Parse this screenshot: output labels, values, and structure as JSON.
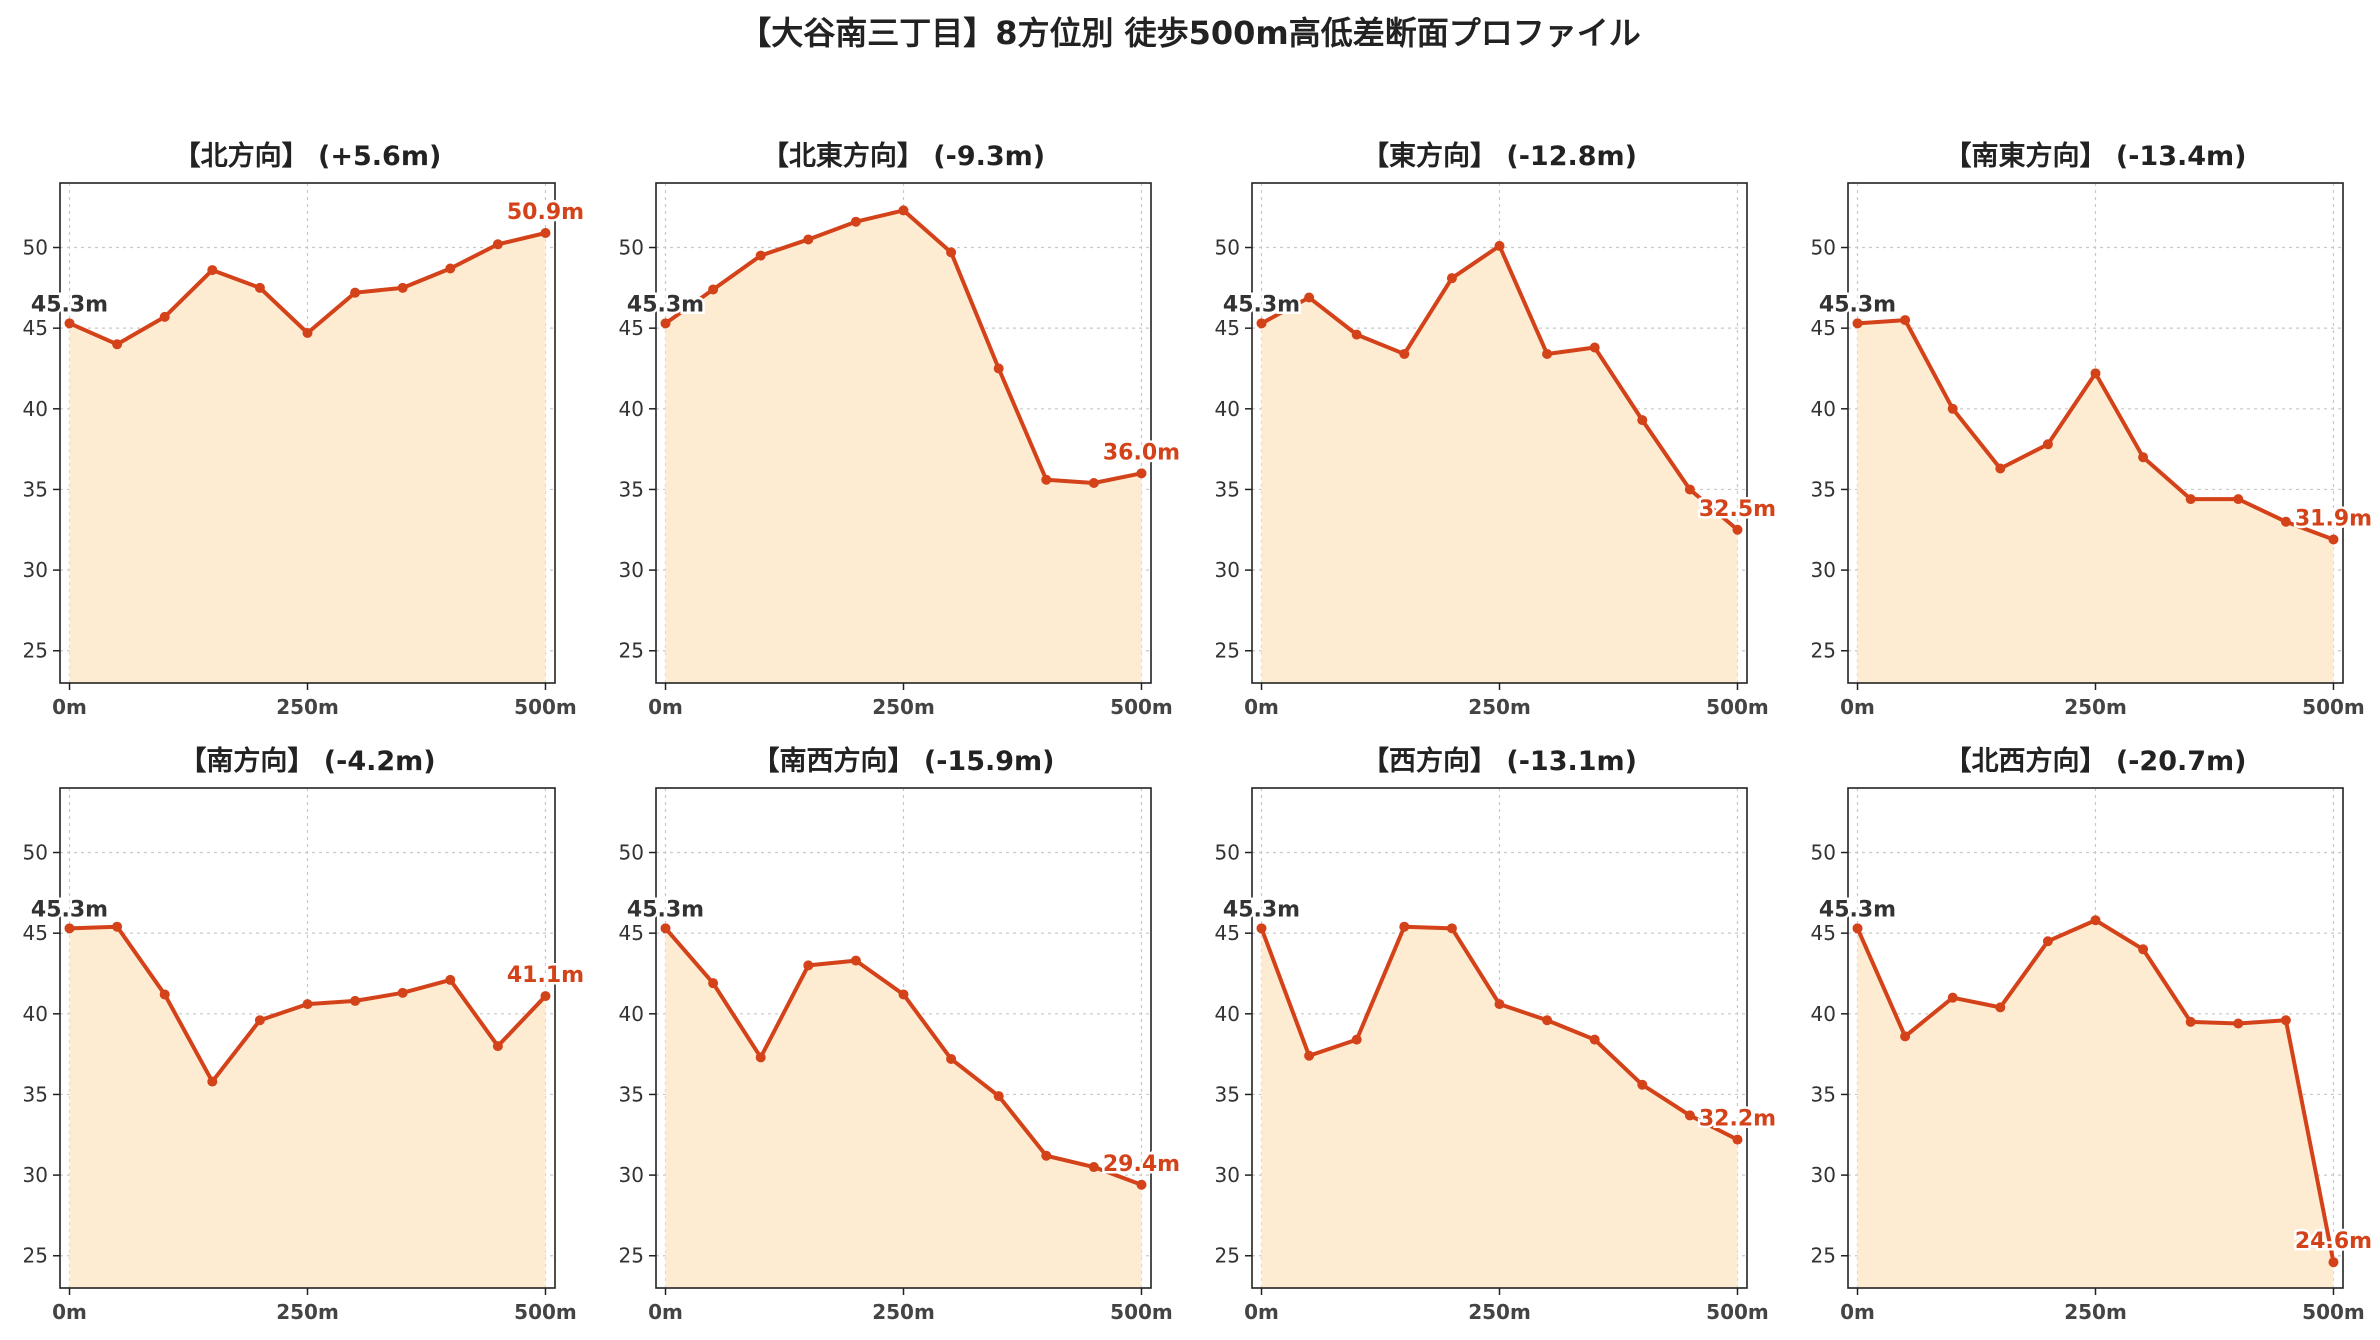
{
  "title": "【大谷南三丁目】8方位別 徒歩500m高低差断面プロファイル",
  "colors": {
    "line": "#d4421a",
    "fill": "#fdecd2",
    "end_label": "#d4421a",
    "start_label": "#333333",
    "grid": "#c8c8c8"
  },
  "chart_data": [
    {
      "type": "area",
      "title": "【北方向】 (+5.6m)",
      "x": [
        0,
        50,
        100,
        150,
        200,
        250,
        300,
        350,
        400,
        450,
        500
      ],
      "values": [
        45.3,
        44.0,
        45.7,
        48.6,
        47.5,
        44.7,
        47.2,
        47.5,
        48.7,
        50.2,
        50.9
      ],
      "start_label": "45.3m",
      "end_label": "50.9m",
      "xticks": [
        "0m",
        "250m",
        "500m"
      ],
      "yticks": [
        25,
        30,
        35,
        40,
        45,
        50
      ],
      "ylim": [
        23,
        54
      ],
      "xlim": [
        -10,
        510
      ],
      "grid": true
    },
    {
      "type": "area",
      "title": "【北東方向】 (-9.3m)",
      "x": [
        0,
        50,
        100,
        150,
        200,
        250,
        300,
        350,
        400,
        450,
        500
      ],
      "values": [
        45.3,
        47.4,
        49.5,
        50.5,
        51.6,
        52.3,
        49.7,
        42.5,
        35.6,
        35.4,
        36.0
      ],
      "start_label": "45.3m",
      "end_label": "36.0m",
      "xticks": [
        "0m",
        "250m",
        "500m"
      ],
      "yticks": [
        25,
        30,
        35,
        40,
        45,
        50
      ],
      "ylim": [
        23,
        54
      ],
      "xlim": [
        -10,
        510
      ],
      "grid": true
    },
    {
      "type": "area",
      "title": "【東方向】 (-12.8m)",
      "x": [
        0,
        50,
        100,
        150,
        200,
        250,
        300,
        350,
        400,
        450,
        500
      ],
      "values": [
        45.3,
        46.9,
        44.6,
        43.4,
        48.1,
        50.1,
        43.4,
        43.8,
        39.3,
        35.0,
        32.5
      ],
      "start_label": "45.3m",
      "end_label": "32.5m",
      "xticks": [
        "0m",
        "250m",
        "500m"
      ],
      "yticks": [
        25,
        30,
        35,
        40,
        45,
        50
      ],
      "ylim": [
        23,
        54
      ],
      "xlim": [
        -10,
        510
      ],
      "grid": true
    },
    {
      "type": "area",
      "title": "【南東方向】 (-13.4m)",
      "x": [
        0,
        50,
        100,
        150,
        200,
        250,
        300,
        350,
        400,
        450,
        500
      ],
      "values": [
        45.3,
        45.5,
        40.0,
        36.3,
        37.8,
        42.2,
        37.0,
        34.4,
        34.4,
        33.0,
        31.9
      ],
      "start_label": "45.3m",
      "end_label": "31.9m",
      "xticks": [
        "0m",
        "250m",
        "500m"
      ],
      "yticks": [
        25,
        30,
        35,
        40,
        45,
        50
      ],
      "ylim": [
        23,
        54
      ],
      "xlim": [
        -10,
        510
      ],
      "grid": true
    },
    {
      "type": "area",
      "title": "【南方向】 (-4.2m)",
      "x": [
        0,
        50,
        100,
        150,
        200,
        250,
        300,
        350,
        400,
        450,
        500
      ],
      "values": [
        45.3,
        45.4,
        41.2,
        35.8,
        39.6,
        40.6,
        40.8,
        41.3,
        42.1,
        38.0,
        41.1
      ],
      "start_label": "45.3m",
      "end_label": "41.1m",
      "xticks": [
        "0m",
        "250m",
        "500m"
      ],
      "yticks": [
        25,
        30,
        35,
        40,
        45,
        50
      ],
      "ylim": [
        23,
        54
      ],
      "xlim": [
        -10,
        510
      ],
      "grid": true
    },
    {
      "type": "area",
      "title": "【南西方向】 (-15.9m)",
      "x": [
        0,
        50,
        100,
        150,
        200,
        250,
        300,
        350,
        400,
        450,
        500
      ],
      "values": [
        45.3,
        41.9,
        37.3,
        43.0,
        43.3,
        41.2,
        37.2,
        34.9,
        31.2,
        30.5,
        29.4
      ],
      "start_label": "45.3m",
      "end_label": "29.4m",
      "xticks": [
        "0m",
        "250m",
        "500m"
      ],
      "yticks": [
        25,
        30,
        35,
        40,
        45,
        50
      ],
      "ylim": [
        23,
        54
      ],
      "xlim": [
        -10,
        510
      ],
      "grid": true
    },
    {
      "type": "area",
      "title": "【西方向】 (-13.1m)",
      "x": [
        0,
        50,
        100,
        150,
        200,
        250,
        300,
        350,
        400,
        450,
        500
      ],
      "values": [
        45.3,
        37.4,
        38.4,
        45.4,
        45.3,
        40.6,
        39.6,
        38.4,
        35.6,
        33.7,
        32.2
      ],
      "start_label": "45.3m",
      "end_label": "32.2m",
      "xticks": [
        "0m",
        "250m",
        "500m"
      ],
      "yticks": [
        25,
        30,
        35,
        40,
        45,
        50
      ],
      "ylim": [
        23,
        54
      ],
      "xlim": [
        -10,
        510
      ],
      "grid": true
    },
    {
      "type": "area",
      "title": "【北西方向】 (-20.7m)",
      "x": [
        0,
        50,
        100,
        150,
        200,
        250,
        300,
        350,
        400,
        450,
        500
      ],
      "values": [
        45.3,
        38.6,
        41.0,
        40.4,
        44.5,
        45.8,
        44.0,
        39.5,
        39.4,
        39.6,
        24.6
      ],
      "start_label": "45.3m",
      "end_label": "24.6m",
      "xticks": [
        "0m",
        "250m",
        "500m"
      ],
      "yticks": [
        25,
        30,
        35,
        40,
        45,
        50
      ],
      "ylim": [
        23,
        54
      ],
      "xlim": [
        -10,
        510
      ],
      "grid": true
    }
  ]
}
